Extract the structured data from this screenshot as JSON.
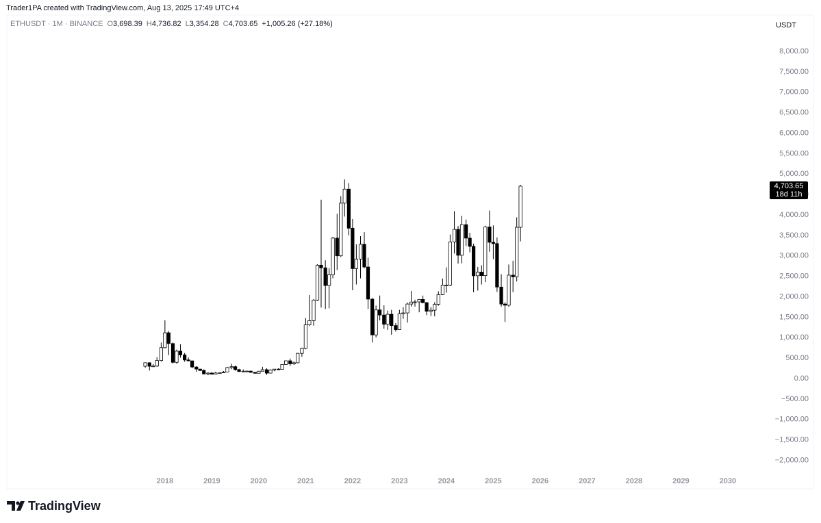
{
  "header": {
    "attribution": "Trader1PA created with TradingView.com, Aug 13, 2025 17:49 UTC+4"
  },
  "legend": {
    "symbol": "ETHUSDT · 1M · BINANCE",
    "items": [
      {
        "key": "O",
        "value": "3,698.39"
      },
      {
        "key": "H",
        "value": "4,736.82"
      },
      {
        "key": "L",
        "value": "3,354.28"
      },
      {
        "key": "C",
        "value": "4,703.65"
      }
    ],
    "change": "+1,005.26 (+27.18%)"
  },
  "logo": {
    "text": "TradingView"
  },
  "chart_data": {
    "type": "candlestick",
    "unit": "USDT",
    "up_color": "#ffffff",
    "down_color": "#000000",
    "border_color": "#000000",
    "xlim": [
      2014.63,
      2030.76
    ],
    "xticks": [
      2018,
      2019,
      2020,
      2021,
      2022,
      2023,
      2024,
      2025,
      2026,
      2027,
      2028,
      2029,
      2030
    ],
    "ylim": [
      -2293,
      8418
    ],
    "yticks": [
      {
        "value": 8000,
        "label": "8,000.00"
      },
      {
        "value": 7500,
        "label": "7,500.00"
      },
      {
        "value": 7000,
        "label": "7,000.00"
      },
      {
        "value": 6500,
        "label": "6,500.00"
      },
      {
        "value": 6000,
        "label": "6,000.00"
      },
      {
        "value": 5500,
        "label": "5,500.00"
      },
      {
        "value": 5000,
        "label": "5,000.00"
      },
      {
        "value": 4500,
        "label": "4,500.00"
      },
      {
        "value": 4000,
        "label": "4,000.00"
      },
      {
        "value": 3500,
        "label": "3,500.00"
      },
      {
        "value": 3000,
        "label": "3,000.00"
      },
      {
        "value": 2500,
        "label": "2,500.00"
      },
      {
        "value": 2000,
        "label": "2,000.00"
      },
      {
        "value": 1500,
        "label": "1,500.00"
      },
      {
        "value": 1000,
        "label": "1,000.00"
      },
      {
        "value": 500,
        "label": "500.00"
      },
      {
        "value": 0,
        "label": "0.00"
      },
      {
        "value": -500,
        "label": "−500.00"
      },
      {
        "value": -1000,
        "label": "−1,000.00"
      },
      {
        "value": -1500,
        "label": "−1,500.00"
      },
      {
        "value": -2000,
        "label": "−2,000.00"
      }
    ],
    "last_price": {
      "value": 4703.65,
      "label": "4,703.65"
    },
    "countdown": "18d 11h",
    "x": [
      2017.58,
      2017.67,
      2017.75,
      2017.83,
      2017.92,
      2018.0,
      2018.08,
      2018.17,
      2018.25,
      2018.33,
      2018.42,
      2018.5,
      2018.58,
      2018.67,
      2018.75,
      2018.83,
      2018.92,
      2019.0,
      2019.08,
      2019.17,
      2019.25,
      2019.33,
      2019.42,
      2019.5,
      2019.58,
      2019.67,
      2019.75,
      2019.83,
      2019.92,
      2020.0,
      2020.08,
      2020.17,
      2020.25,
      2020.33,
      2020.42,
      2020.5,
      2020.58,
      2020.67,
      2020.75,
      2020.83,
      2020.92,
      2021.0,
      2021.08,
      2021.17,
      2021.25,
      2021.33,
      2021.42,
      2021.5,
      2021.58,
      2021.67,
      2021.75,
      2021.83,
      2021.92,
      2022.0,
      2022.08,
      2022.17,
      2022.25,
      2022.33,
      2022.42,
      2022.5,
      2022.58,
      2022.67,
      2022.75,
      2022.83,
      2022.92,
      2023.0,
      2023.08,
      2023.17,
      2023.25,
      2023.33,
      2023.42,
      2023.5,
      2023.58,
      2023.67,
      2023.75,
      2023.83,
      2023.92,
      2024.0,
      2024.08,
      2024.17,
      2024.25,
      2024.33,
      2024.42,
      2024.5,
      2024.58,
      2024.67,
      2024.75,
      2024.83,
      2024.92,
      2025.0,
      2025.08,
      2025.17,
      2025.25,
      2025.33,
      2025.42,
      2025.5,
      2025.58
    ],
    "open": [
      301,
      387,
      301,
      305,
      441,
      756,
      1119,
      856,
      397,
      670,
      578,
      455,
      433,
      283,
      232,
      198,
      113,
      133,
      107,
      136,
      141,
      161,
      268,
      290,
      218,
      172,
      180,
      182,
      152,
      129,
      179,
      217,
      133,
      206,
      231,
      226,
      345,
      434,
      360,
      386,
      616,
      737,
      1314,
      1416,
      1919,
      2772,
      2707,
      2275,
      2536,
      3433,
      3001,
      4288,
      4631,
      3676,
      2688,
      2919,
      3282,
      2727,
      1942,
      1067,
      1678,
      1553,
      1328,
      1572,
      1295,
      1196,
      1585,
      1605,
      1822,
      1870,
      1874,
      1934,
      1856,
      1645,
      1671,
      1815,
      2052,
      2282,
      2283,
      3340,
      3647,
      3014,
      3762,
      3433,
      3232,
      2513,
      2602,
      2517,
      3705,
      3332,
      3300,
      2237,
      1822,
      1793,
      2528,
      2486,
      3698.39
    ],
    "high": [
      392,
      395,
      352,
      522,
      881,
      1424,
      1161,
      880,
      709,
      838,
      624,
      516,
      435,
      300,
      235,
      225,
      155,
      161,
      165,
      147,
      184,
      288,
      362,
      320,
      238,
      223,
      197,
      194,
      153,
      188,
      287,
      253,
      227,
      227,
      253,
      350,
      446,
      488,
      417,
      622,
      755,
      1476,
      2041,
      1943,
      2797,
      4372,
      2891,
      2700,
      3466,
      4028,
      4460,
      4868,
      4778,
      3900,
      3282,
      3480,
      3580,
      2955,
      1972,
      1785,
      2030,
      1790,
      1663,
      1680,
      1353,
      1680,
      1743,
      1857,
      2141,
      1928,
      1930,
      2029,
      1870,
      1750,
      1866,
      2134,
      2445,
      2717,
      3522,
      4093,
      3730,
      3977,
      3887,
      3563,
      3300,
      2730,
      2770,
      3734,
      4107,
      3744,
      3450,
      2550,
      1867,
      2788,
      2880,
      3941,
      4736.82
    ],
    "low": [
      265,
      197,
      283,
      285,
      418,
      737,
      574,
      367,
      365,
      510,
      412,
      418,
      250,
      167,
      186,
      100,
      82,
      101,
      101,
      126,
      142,
      152,
      229,
      190,
      162,
      152,
      154,
      140,
      117,
      127,
      178,
      90,
      128,
      179,
      216,
      224,
      334,
      308,
      334,
      374,
      532,
      715,
      1282,
      1293,
      1900,
      1735,
      1700,
      1718,
      2451,
      2651,
      2970,
      3960,
      3500,
      2159,
      2300,
      2450,
      2700,
      1700,
      880,
      1006,
      1422,
      1220,
      1190,
      1073,
      1150,
      1190,
      1460,
      1368,
      1760,
      1760,
      1620,
      1840,
      1550,
      1530,
      1520,
      1780,
      2040,
      2100,
      2260,
      3056,
      2810,
      2817,
      3240,
      3085,
      2111,
      2150,
      2300,
      2358,
      3100,
      2920,
      2120,
      1760,
      1385,
      1752,
      2111,
      2373,
      3354.28
    ],
    "close": [
      387,
      301,
      305,
      441,
      756,
      1119,
      856,
      397,
      670,
      578,
      455,
      433,
      283,
      232,
      198,
      113,
      133,
      107,
      136,
      141,
      161,
      268,
      290,
      218,
      172,
      180,
      182,
      152,
      129,
      179,
      217,
      133,
      206,
      231,
      226,
      345,
      434,
      360,
      386,
      616,
      737,
      1314,
      1416,
      1919,
      2772,
      2707,
      2275,
      2536,
      3433,
      3001,
      4288,
      4631,
      3676,
      2688,
      2919,
      3282,
      2727,
      1942,
      1067,
      1678,
      1553,
      1328,
      1572,
      1295,
      1196,
      1585,
      1605,
      1822,
      1870,
      1874,
      1934,
      1856,
      1645,
      1671,
      1815,
      2052,
      2282,
      2283,
      3340,
      3647,
      3014,
      3762,
      3433,
      3232,
      2513,
      2602,
      2517,
      3705,
      3332,
      3300,
      2237,
      1822,
      1793,
      2528,
      2486,
      3698.39,
      4703.65
    ]
  }
}
